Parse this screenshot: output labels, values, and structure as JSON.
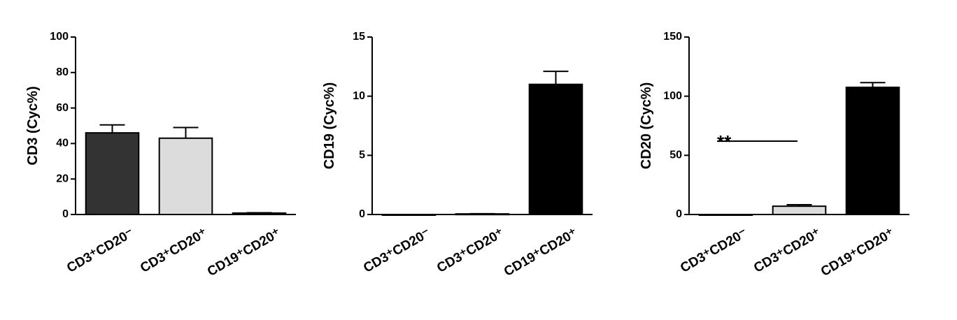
{
  "chart_data": [
    {
      "type": "bar",
      "ylabel": "CD3 (Cyc%)",
      "categories": [
        "CD3⁺CD20⁻",
        "CD3⁺CD20⁺",
        "CD19⁺CD20⁺"
      ],
      "values": [
        46,
        43,
        0.8
      ],
      "errors": [
        4.5,
        6,
        0.2
      ],
      "colors": [
        "#333333",
        "#dcdcdc",
        "#000000"
      ],
      "ylim": [
        0,
        100
      ],
      "yticks": [
        0,
        20,
        40,
        60,
        80,
        100
      ]
    },
    {
      "type": "bar",
      "ylabel": "CD19 (Cyc%)",
      "categories": [
        "CD3⁺CD20⁻",
        "CD3⁺CD20⁺",
        "CD19⁺CD20⁺"
      ],
      "values": [
        0,
        0.05,
        11
      ],
      "errors": [
        0,
        0.02,
        1.1
      ],
      "colors": [
        "#333333",
        "#dcdcdc",
        "#000000"
      ],
      "ylim": [
        0,
        15
      ],
      "yticks": [
        0,
        5,
        10,
        15
      ]
    },
    {
      "type": "bar",
      "ylabel": "CD20 (Cyc%)",
      "categories": [
        "CD3⁺CD20⁻",
        "CD3⁺CD20⁺",
        "CD19⁺CD20⁺"
      ],
      "values": [
        0,
        7,
        107.5
      ],
      "errors": [
        0,
        1.3,
        4
      ],
      "colors": [
        "#333333",
        "#dcdcdc",
        "#000000"
      ],
      "ylim": [
        0,
        150
      ],
      "yticks": [
        0,
        50,
        100,
        150
      ],
      "annotation": {
        "text": "**",
        "y": 62
      }
    }
  ]
}
